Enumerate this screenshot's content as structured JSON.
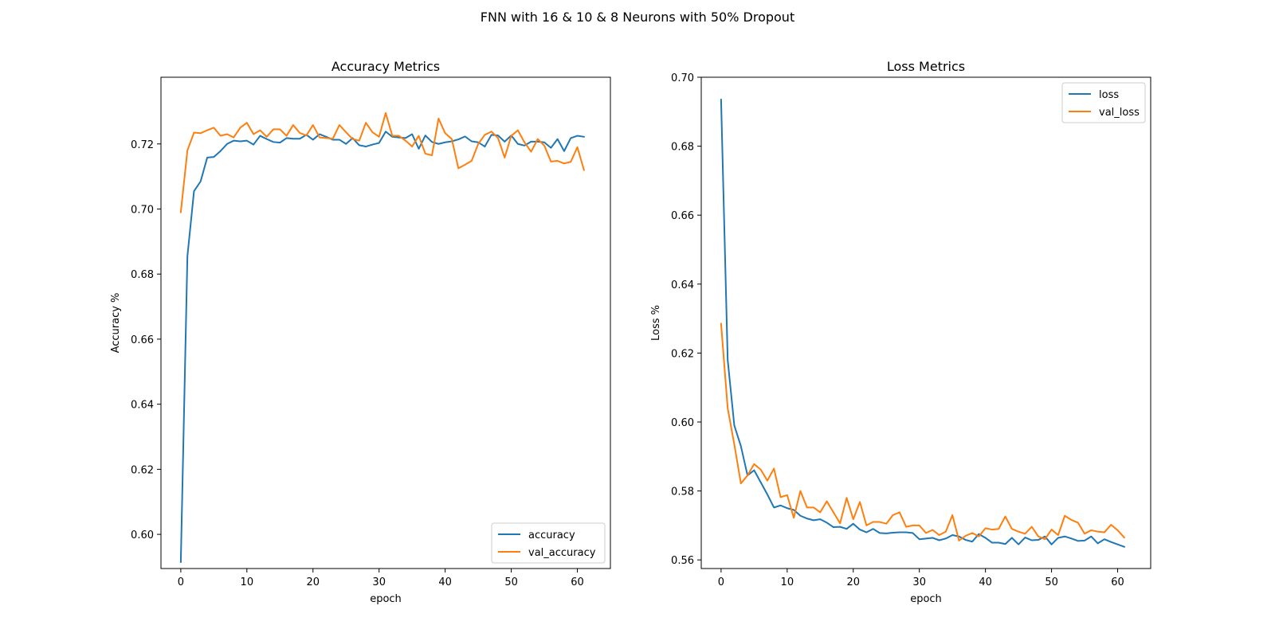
{
  "figure": {
    "title": "FNN with 16 & 10 & 8 Neurons with 50% Dropout"
  },
  "chart_data": [
    {
      "type": "line",
      "title": "Accuracy Metrics",
      "xlabel": "epoch",
      "ylabel": "Accuracy %",
      "xlim": [
        -3,
        65
      ],
      "ylim": [
        0.5895,
        0.7405
      ],
      "xticks": [
        0,
        10,
        20,
        30,
        40,
        50,
        60
      ],
      "yticks": [
        0.6,
        0.62,
        0.64,
        0.66,
        0.68,
        0.7,
        0.72
      ],
      "legend_position": "lower-right",
      "grid": false,
      "series": [
        {
          "name": "accuracy",
          "color": "#1f77b4",
          "values": [
            0.5915,
            0.6855,
            0.7055,
            0.7085,
            0.7158,
            0.716,
            0.7178,
            0.72,
            0.721,
            0.7208,
            0.721,
            0.7198,
            0.7225,
            0.7215,
            0.7206,
            0.7204,
            0.7218,
            0.7216,
            0.7216,
            0.7228,
            0.7213,
            0.723,
            0.7222,
            0.7213,
            0.7213,
            0.72,
            0.7218,
            0.7196,
            0.7192,
            0.7198,
            0.7203,
            0.7238,
            0.7222,
            0.722,
            0.7218,
            0.723,
            0.7185,
            0.7226,
            0.7206,
            0.72,
            0.7205,
            0.7208,
            0.7214,
            0.7223,
            0.7208,
            0.7205,
            0.7192,
            0.7228,
            0.7226,
            0.7207,
            0.7226,
            0.72,
            0.7195,
            0.7207,
            0.7207,
            0.7205,
            0.7188,
            0.7215,
            0.7178,
            0.7218,
            0.7225,
            0.7222
          ]
        },
        {
          "name": "val_accuracy",
          "color": "#ff7f0e",
          "values": [
            0.699,
            0.718,
            0.7235,
            0.7233,
            0.7242,
            0.725,
            0.7225,
            0.723,
            0.722,
            0.725,
            0.7265,
            0.723,
            0.7242,
            0.7222,
            0.7245,
            0.7245,
            0.7225,
            0.7258,
            0.7234,
            0.7226,
            0.7258,
            0.722,
            0.7218,
            0.7216,
            0.7258,
            0.7236,
            0.7215,
            0.721,
            0.7265,
            0.7236,
            0.7222,
            0.7295,
            0.7225,
            0.7225,
            0.721,
            0.7192,
            0.7225,
            0.717,
            0.7165,
            0.7278,
            0.7233,
            0.7215,
            0.7125,
            0.7136,
            0.7148,
            0.72,
            0.7228,
            0.7238,
            0.7218,
            0.7158,
            0.7225,
            0.7242,
            0.7205,
            0.7176,
            0.7215,
            0.7195,
            0.7146,
            0.7148,
            0.714,
            0.7145,
            0.719,
            0.712
          ]
        }
      ]
    },
    {
      "type": "line",
      "title": "Loss Metrics",
      "xlabel": "epoch",
      "ylabel": "Loss %",
      "xlim": [
        -3,
        65
      ],
      "ylim": [
        0.5575,
        0.7
      ],
      "xticks": [
        0,
        10,
        20,
        30,
        40,
        50,
        60
      ],
      "yticks": [
        0.56,
        0.58,
        0.6,
        0.62,
        0.64,
        0.66,
        0.68,
        0.7
      ],
      "legend_position": "upper-right",
      "grid": false,
      "series": [
        {
          "name": "loss",
          "color": "#1f77b4",
          "values": [
            0.6935,
            0.618,
            0.599,
            0.593,
            0.5845,
            0.586,
            0.5825,
            0.579,
            0.5752,
            0.5758,
            0.575,
            0.5745,
            0.5728,
            0.572,
            0.5715,
            0.5718,
            0.5708,
            0.5695,
            0.5696,
            0.569,
            0.5705,
            0.5688,
            0.568,
            0.569,
            0.5678,
            0.5677,
            0.5679,
            0.568,
            0.568,
            0.5678,
            0.566,
            0.5662,
            0.5664,
            0.5657,
            0.5662,
            0.5672,
            0.5668,
            0.5658,
            0.5653,
            0.5675,
            0.5664,
            0.565,
            0.565,
            0.5646,
            0.5664,
            0.5645,
            0.5665,
            0.5657,
            0.5658,
            0.5668,
            0.5645,
            0.5664,
            0.5668,
            0.5662,
            0.5655,
            0.5656,
            0.5668,
            0.5648,
            0.566,
            0.5652,
            0.5645,
            0.5638
          ]
        },
        {
          "name": "val_loss",
          "color": "#ff7f0e",
          "values": [
            0.6285,
            0.604,
            0.5935,
            0.5822,
            0.5845,
            0.5878,
            0.5862,
            0.583,
            0.5865,
            0.5782,
            0.5788,
            0.5722,
            0.58,
            0.5752,
            0.5752,
            0.5738,
            0.577,
            0.5738,
            0.5706,
            0.578,
            0.5718,
            0.5768,
            0.57,
            0.571,
            0.571,
            0.5705,
            0.573,
            0.5738,
            0.5696,
            0.57,
            0.57,
            0.5678,
            0.5687,
            0.5672,
            0.5682,
            0.573,
            0.5656,
            0.567,
            0.5678,
            0.5668,
            0.5692,
            0.5688,
            0.569,
            0.5726,
            0.569,
            0.5682,
            0.5676,
            0.5696,
            0.5668,
            0.566,
            0.5688,
            0.5672,
            0.5728,
            0.5716,
            0.5708,
            0.5676,
            0.5686,
            0.5682,
            0.568,
            0.5702,
            0.5686,
            0.5665
          ]
        }
      ]
    }
  ]
}
